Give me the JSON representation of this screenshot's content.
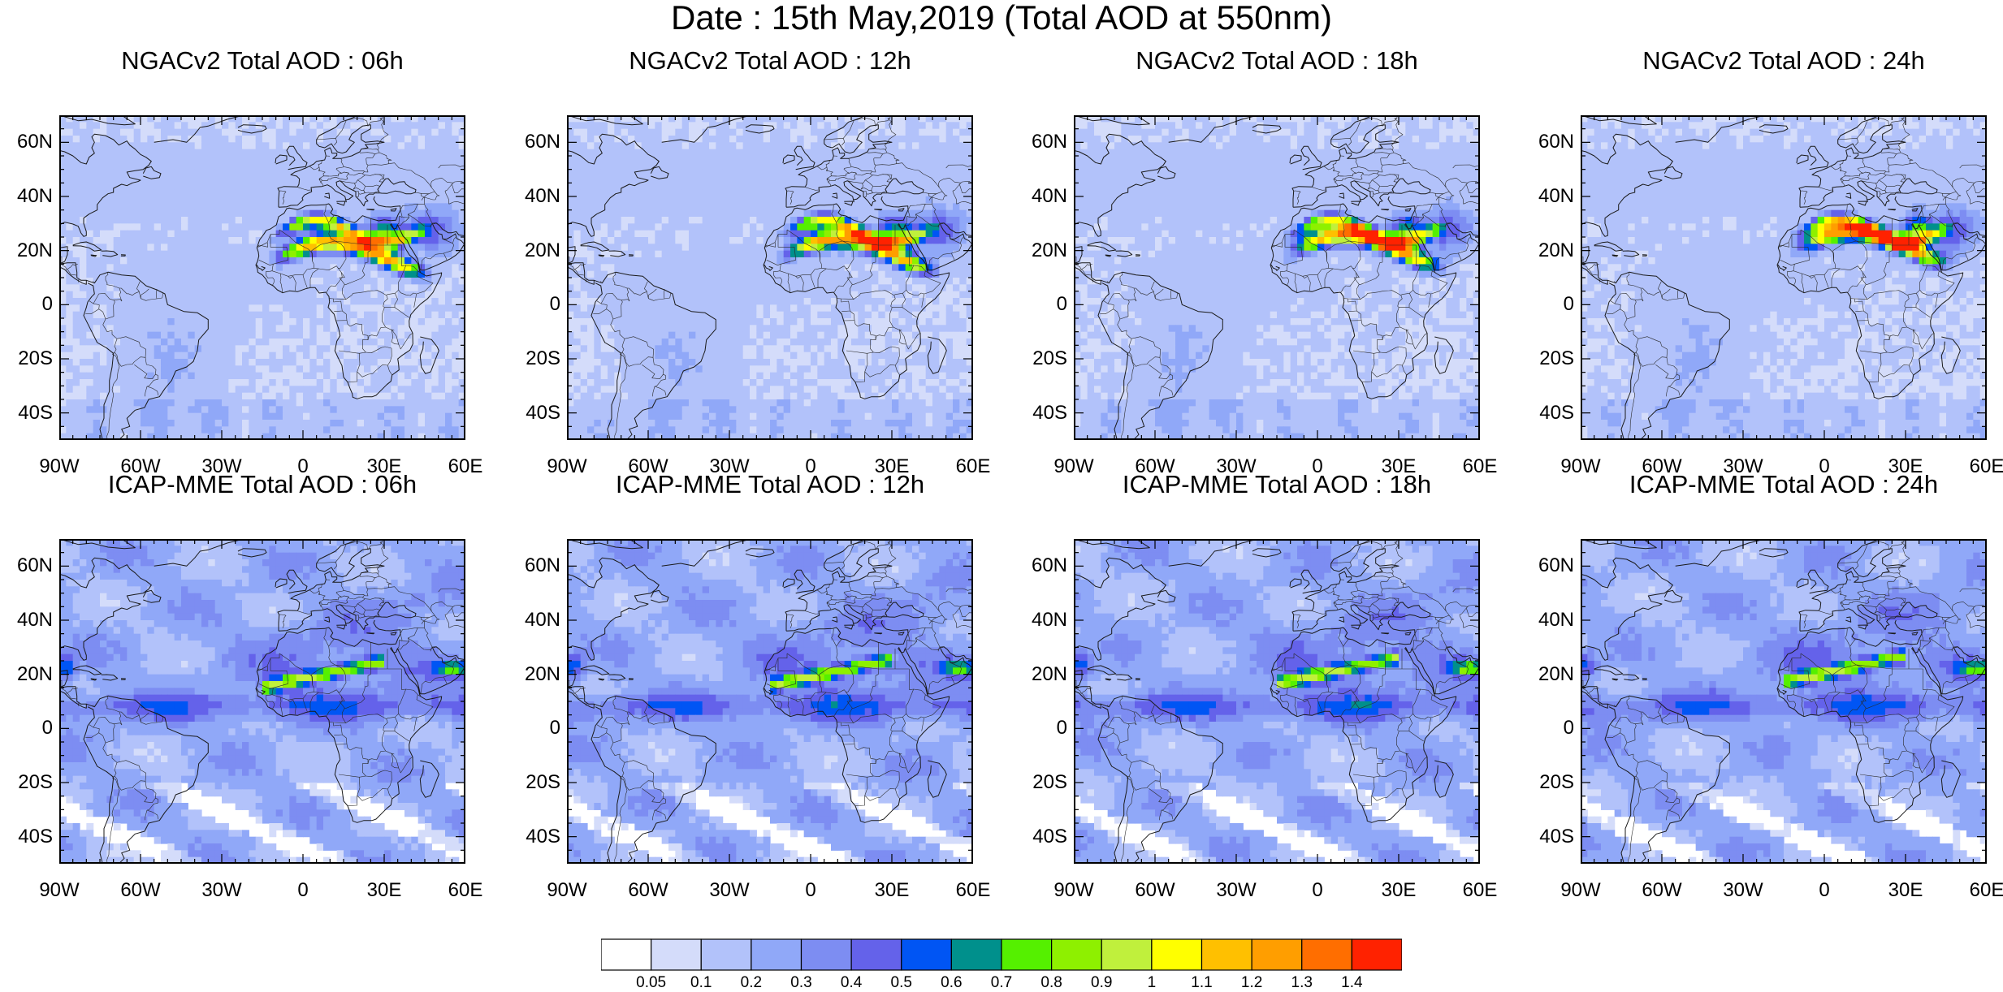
{
  "title": "Date : 15th May,2019 (Total AOD at 550nm)",
  "lat_ticks": [
    "60N",
    "40N",
    "20N",
    "0",
    "20S",
    "40S"
  ],
  "lon_ticks": [
    "90W",
    "60W",
    "30W",
    "0",
    "30E",
    "60E"
  ],
  "panels": [
    {
      "title": "NGACv2 Total AOD : 06h",
      "model": "ngac",
      "hour": 6
    },
    {
      "title": "NGACv2 Total AOD : 12h",
      "model": "ngac",
      "hour": 12
    },
    {
      "title": "NGACv2 Total AOD : 18h",
      "model": "ngac",
      "hour": 18
    },
    {
      "title": "NGACv2 Total AOD : 24h",
      "model": "ngac",
      "hour": 24
    },
    {
      "title": "ICAP-MME Total AOD : 06h",
      "model": "icap",
      "hour": 6
    },
    {
      "title": "ICAP-MME Total AOD : 12h",
      "model": "icap",
      "hour": 12
    },
    {
      "title": "ICAP-MME Total AOD : 18h",
      "model": "icap",
      "hour": 18
    },
    {
      "title": "ICAP-MME Total AOD : 24h",
      "model": "icap",
      "hour": 24
    }
  ],
  "colorbar": {
    "labels": [
      "0.05",
      "0.1",
      "0.2",
      "0.3",
      "0.4",
      "0.5",
      "0.6",
      "0.7",
      "0.8",
      "0.9",
      "1",
      "1.1",
      "1.2",
      "1.3",
      "1.4"
    ],
    "colors": [
      "#ffffff",
      "#d4dcfa",
      "#b2c2fa",
      "#90a8f8",
      "#7d8df2",
      "#6462ea",
      "#0055f4",
      "#00908c",
      "#55f000",
      "#8ef000",
      "#c0f03c",
      "#ffff00",
      "#ffc000",
      "#ff9e00",
      "#ff6e00",
      "#ff2200"
    ]
  }
}
